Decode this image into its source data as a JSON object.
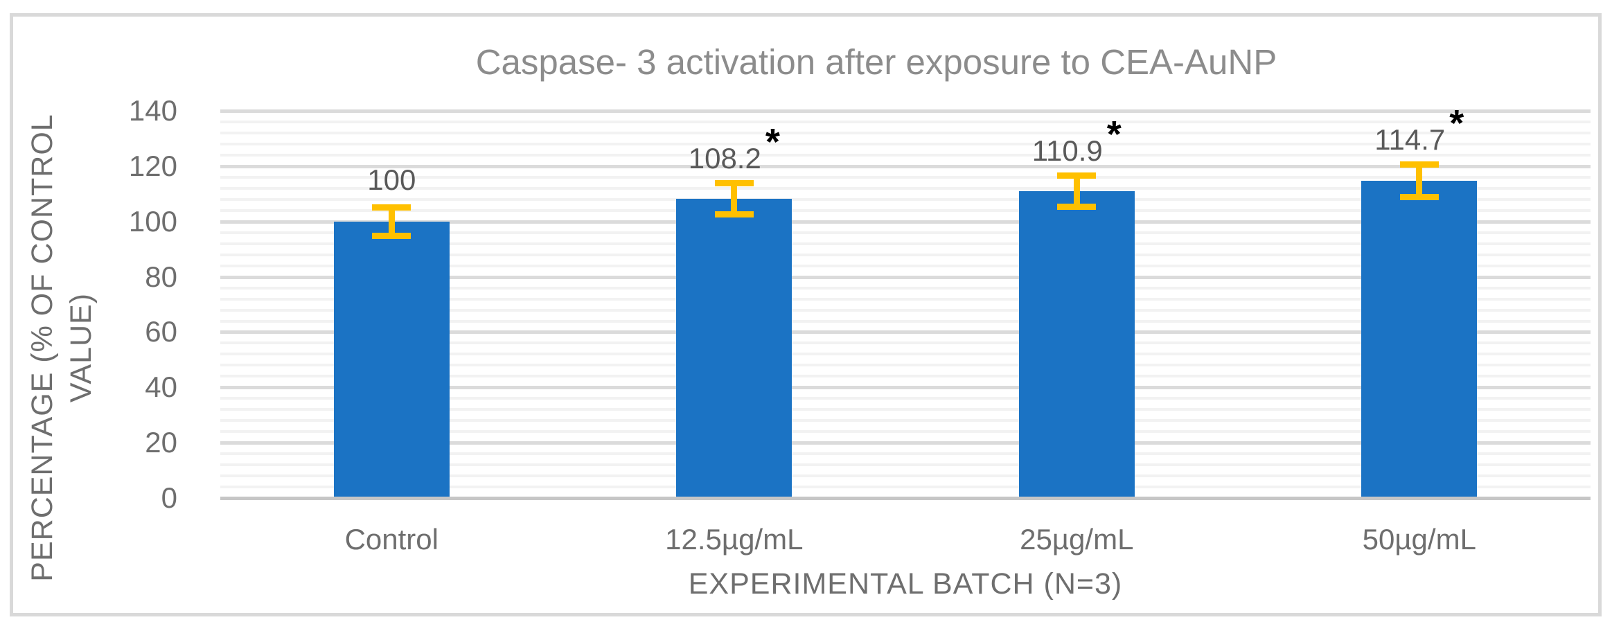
{
  "chart_data": {
    "type": "bar",
    "title": "Caspase- 3 activation after exposure to CEA-AuNP",
    "categories": [
      "Control",
      "12.5µg/mL",
      "25µg/mL",
      "50µg/mL"
    ],
    "values": [
      100,
      108.2,
      110.9,
      114.7
    ],
    "data_labels": [
      "100",
      "108.2",
      "110.9",
      "114.7"
    ],
    "significance_markers": [
      "",
      "*",
      "*",
      "*"
    ],
    "error_bars": [
      6.3,
      6.7,
      6.7,
      7.1
    ],
    "xlabel": "EXPERIMENTAL BATCH (N=3)",
    "ylabel": "PERCENTAGE (% OF CONTROL VALUE)",
    "ylabel_lines": [
      "PERCENTAGE (% OF CONTROL",
      "VALUE)"
    ],
    "yticks": [
      0,
      20,
      40,
      60,
      80,
      100,
      120,
      140
    ],
    "ylim": [
      0,
      140
    ],
    "ytick_step": 20,
    "minor_unit": 4,
    "grid": "horizontal major + minor",
    "legend": "none",
    "colors": {
      "bar": "#1B73C4",
      "error_bar": "#FFC000",
      "major_grid": "#DBDBDB",
      "minor_grid": "#F2F2F2",
      "axis_line": "#C6C6C6",
      "title_text": "#8C8C8C",
      "axis_text": "#6E6E6E",
      "data_label_text": "#595959",
      "significance_marker": "#000000",
      "frame_border": "#D9D9D9"
    }
  }
}
